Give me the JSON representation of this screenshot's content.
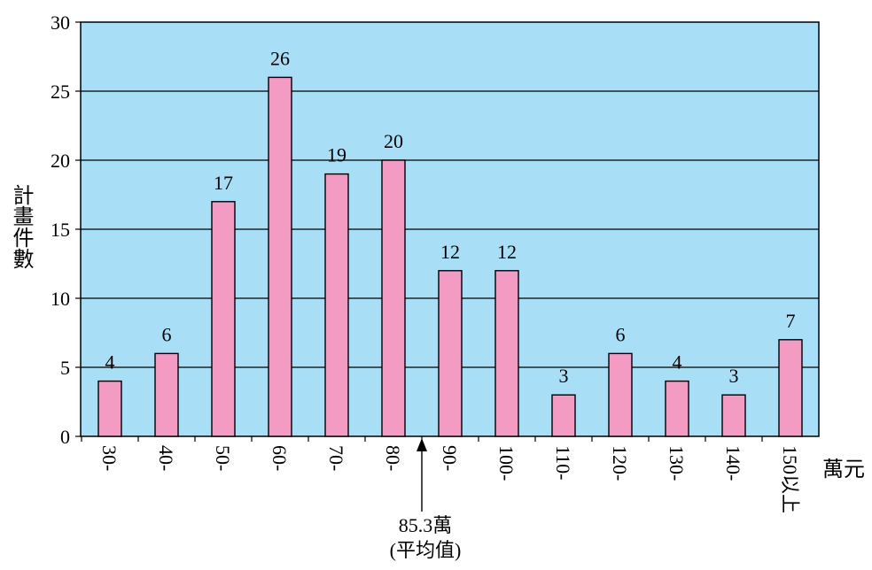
{
  "chart_data": {
    "type": "bar",
    "categories": [
      "30-",
      "40-",
      "50-",
      "60-",
      "70-",
      "80-",
      "90-",
      "100-",
      "110-",
      "120-",
      "130-",
      "140-",
      "150以上"
    ],
    "values": [
      4,
      6,
      17,
      26,
      19,
      20,
      12,
      12,
      3,
      6,
      4,
      3,
      7
    ],
    "ylabel": "計畫件數",
    "xlabel": "萬元",
    "ylim": [
      0,
      30
    ],
    "yticks": [
      0,
      5,
      10,
      15,
      20,
      25,
      30
    ],
    "grid": true,
    "colors": {
      "plot_background": "#a9def7",
      "bar": "#f49bc4",
      "bar_border": "#000000"
    },
    "annotation": {
      "value_label": "85.3萬",
      "caption": "(平均值)",
      "position_between": [
        "80-",
        "90-"
      ]
    }
  }
}
